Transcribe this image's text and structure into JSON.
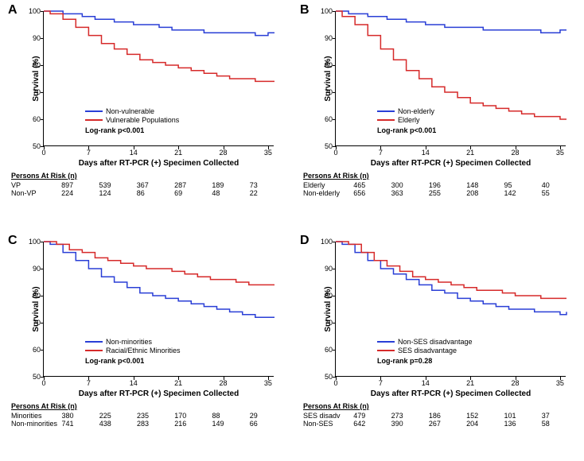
{
  "xlabel": "Days after RT-PCR (+) Specimen Collected",
  "ylabel": "Survival (%)",
  "ylim": [
    50,
    100
  ],
  "yticks": [
    50,
    60,
    70,
    80,
    90,
    100
  ],
  "xticks": [
    0,
    7,
    14,
    21,
    28,
    35
  ],
  "xlim": [
    0,
    36
  ],
  "line_width": 1.5,
  "tick_fontsize": 9,
  "label_fontsize": 10,
  "panel_label_fontsize": 16,
  "colors": {
    "blue": "#2a3fd6",
    "red": "#d62a2a",
    "black": "#000000",
    "bg": "#ffffff"
  },
  "panels": [
    {
      "label": "A",
      "series": [
        {
          "color": "#2a3fd6",
          "name": "Non-vulnerable",
          "points": [
            [
              0,
              100
            ],
            [
              1,
              100
            ],
            [
              3,
              99
            ],
            [
              6,
              98
            ],
            [
              8,
              97
            ],
            [
              11,
              96
            ],
            [
              14,
              95
            ],
            [
              16,
              95
            ],
            [
              18,
              94
            ],
            [
              20,
              93
            ],
            [
              22,
              93
            ],
            [
              25,
              92
            ],
            [
              28,
              92
            ],
            [
              31,
              92
            ],
            [
              33,
              91
            ],
            [
              35,
              92
            ],
            [
              36,
              92
            ]
          ]
        },
        {
          "color": "#d62a2a",
          "name": "Vulnerable Populations",
          "points": [
            [
              0,
              100
            ],
            [
              1,
              99
            ],
            [
              3,
              97
            ],
            [
              5,
              94
            ],
            [
              7,
              91
            ],
            [
              9,
              88
            ],
            [
              11,
              86
            ],
            [
              13,
              84
            ],
            [
              15,
              82
            ],
            [
              17,
              81
            ],
            [
              19,
              80
            ],
            [
              21,
              79
            ],
            [
              23,
              78
            ],
            [
              25,
              77
            ],
            [
              27,
              76
            ],
            [
              29,
              75
            ],
            [
              31,
              75
            ],
            [
              33,
              74
            ],
            [
              35,
              74
            ],
            [
              36,
              74
            ]
          ]
        }
      ],
      "logrank": "Log-rank p<0.001",
      "risk_title": "Persons At Risk (n)",
      "risk_rows": [
        {
          "label": "VP",
          "vals": [
            897,
            539,
            367,
            287,
            189,
            73
          ]
        },
        {
          "label": "Non-VP",
          "vals": [
            224,
            124,
            86,
            69,
            48,
            22
          ]
        }
      ]
    },
    {
      "label": "B",
      "series": [
        {
          "color": "#2a3fd6",
          "name": "Non-elderly",
          "points": [
            [
              0,
              100
            ],
            [
              2,
              99
            ],
            [
              5,
              98
            ],
            [
              8,
              97
            ],
            [
              11,
              96
            ],
            [
              14,
              95
            ],
            [
              17,
              94
            ],
            [
              20,
              94
            ],
            [
              23,
              93
            ],
            [
              26,
              93
            ],
            [
              29,
              93
            ],
            [
              32,
              92
            ],
            [
              35,
              93
            ],
            [
              36,
              93
            ]
          ]
        },
        {
          "color": "#d62a2a",
          "name": "Elderly",
          "points": [
            [
              0,
              100
            ],
            [
              1,
              98
            ],
            [
              3,
              95
            ],
            [
              5,
              91
            ],
            [
              7,
              86
            ],
            [
              9,
              82
            ],
            [
              11,
              78
            ],
            [
              13,
              75
            ],
            [
              15,
              72
            ],
            [
              17,
              70
            ],
            [
              19,
              68
            ],
            [
              21,
              66
            ],
            [
              23,
              65
            ],
            [
              25,
              64
            ],
            [
              27,
              63
            ],
            [
              29,
              62
            ],
            [
              31,
              61
            ],
            [
              33,
              61
            ],
            [
              35,
              60
            ],
            [
              36,
              60
            ]
          ]
        }
      ],
      "logrank": "Log-rank p<0.001",
      "risk_title": "Persons At Risk (n)",
      "risk_rows": [
        {
          "label": "Elderly",
          "vals": [
            465,
            300,
            196,
            148,
            95,
            40
          ]
        },
        {
          "label": "Non-elderly",
          "vals": [
            656,
            363,
            255,
            208,
            142,
            55
          ]
        }
      ]
    },
    {
      "label": "C",
      "series": [
        {
          "color": "#2a3fd6",
          "name": "Non-minorities",
          "points": [
            [
              0,
              100
            ],
            [
              1,
              99
            ],
            [
              3,
              96
            ],
            [
              5,
              93
            ],
            [
              7,
              90
            ],
            [
              9,
              87
            ],
            [
              11,
              85
            ],
            [
              13,
              83
            ],
            [
              15,
              81
            ],
            [
              17,
              80
            ],
            [
              19,
              79
            ],
            [
              21,
              78
            ],
            [
              23,
              77
            ],
            [
              25,
              76
            ],
            [
              27,
              75
            ],
            [
              29,
              74
            ],
            [
              31,
              73
            ],
            [
              33,
              72
            ],
            [
              35,
              72
            ],
            [
              36,
              72
            ]
          ]
        },
        {
          "color": "#d62a2a",
          "name": "Racial/Ethnic Minorities",
          "points": [
            [
              0,
              100
            ],
            [
              2,
              99
            ],
            [
              4,
              97
            ],
            [
              6,
              96
            ],
            [
              8,
              94
            ],
            [
              10,
              93
            ],
            [
              12,
              92
            ],
            [
              14,
              91
            ],
            [
              16,
              90
            ],
            [
              18,
              90
            ],
            [
              20,
              89
            ],
            [
              22,
              88
            ],
            [
              24,
              87
            ],
            [
              26,
              86
            ],
            [
              28,
              86
            ],
            [
              30,
              85
            ],
            [
              32,
              84
            ],
            [
              34,
              84
            ],
            [
              36,
              84
            ]
          ]
        }
      ],
      "logrank": "Log-rank p<0.001",
      "risk_title": "Persons At Risk (n)",
      "risk_rows": [
        {
          "label": "Minorities",
          "vals": [
            380,
            225,
            235,
            170,
            88,
            29
          ]
        },
        {
          "label": "Non-minorities",
          "vals": [
            741,
            438,
            283,
            216,
            149,
            66
          ]
        }
      ]
    },
    {
      "label": "D",
      "series": [
        {
          "color": "#2a3fd6",
          "name": "Non-SES disadvantage",
          "points": [
            [
              0,
              100
            ],
            [
              1,
              99
            ],
            [
              3,
              96
            ],
            [
              5,
              93
            ],
            [
              7,
              90
            ],
            [
              9,
              88
            ],
            [
              11,
              86
            ],
            [
              13,
              84
            ],
            [
              15,
              82
            ],
            [
              17,
              81
            ],
            [
              19,
              79
            ],
            [
              21,
              78
            ],
            [
              23,
              77
            ],
            [
              25,
              76
            ],
            [
              27,
              75
            ],
            [
              29,
              75
            ],
            [
              31,
              74
            ],
            [
              33,
              74
            ],
            [
              35,
              73
            ],
            [
              36,
              74
            ]
          ]
        },
        {
          "color": "#d62a2a",
          "name": "SES disadvantage",
          "points": [
            [
              0,
              100
            ],
            [
              2,
              99
            ],
            [
              4,
              96
            ],
            [
              6,
              93
            ],
            [
              8,
              91
            ],
            [
              10,
              89
            ],
            [
              12,
              87
            ],
            [
              14,
              86
            ],
            [
              16,
              85
            ],
            [
              18,
              84
            ],
            [
              20,
              83
            ],
            [
              22,
              82
            ],
            [
              24,
              82
            ],
            [
              26,
              81
            ],
            [
              28,
              80
            ],
            [
              30,
              80
            ],
            [
              32,
              79
            ],
            [
              34,
              79
            ],
            [
              36,
              79
            ]
          ]
        }
      ],
      "logrank": "Log-rank p=0.28",
      "risk_title": "Persons At Risk (n)",
      "risk_rows": [
        {
          "label": "SES disadv",
          "vals": [
            479,
            273,
            186,
            152,
            101,
            37
          ]
        },
        {
          "label": "Non-SES",
          "vals": [
            642,
            390,
            267,
            204,
            136,
            58
          ]
        }
      ]
    }
  ]
}
